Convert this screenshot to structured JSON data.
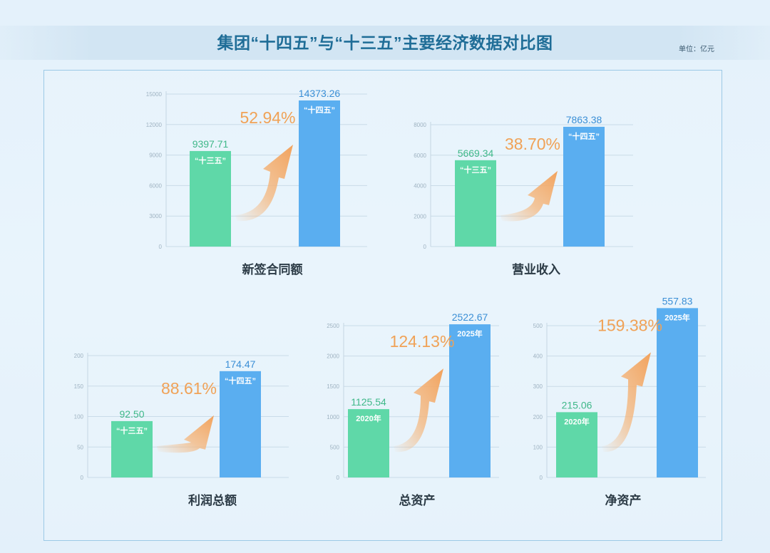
{
  "header": {
    "title": "集团“十四五”与“十三五”主要经济数据对比图",
    "unit": "单位：亿元"
  },
  "colors": {
    "old_bar": "#5fd8a8",
    "new_bar": "#5aaef0",
    "growth": "#f0a257",
    "old_value_text": "#3fb889",
    "new_value_text": "#3b8fd6"
  },
  "chart_data": [
    {
      "type": "bar",
      "title": "新签合同额",
      "categories": [
        "“十三五”",
        "“十四五”"
      ],
      "values": [
        9397.71,
        14373.26
      ],
      "value_labels": [
        "9397.71",
        "14373.26"
      ],
      "growth": "52.94%",
      "yticks": [
        0,
        3000,
        6000,
        9000,
        12000,
        15000
      ],
      "ylim": [
        0,
        15000
      ]
    },
    {
      "type": "bar",
      "title": "营业收入",
      "categories": [
        "“十三五”",
        "“十四五”"
      ],
      "values": [
        5669.34,
        7863.38
      ],
      "value_labels": [
        "5669.34",
        "7863.38"
      ],
      "growth": "38.70%",
      "yticks": [
        0,
        2000,
        4000,
        6000,
        8000
      ],
      "ylim": [
        0,
        10000
      ]
    },
    {
      "type": "bar",
      "title": "利润总额",
      "categories": [
        "“十三五”",
        "“十四五”"
      ],
      "values": [
        92.5,
        174.47
      ],
      "value_labels": [
        "92.50",
        "174.47"
      ],
      "growth": "88.61%",
      "yticks": [
        0,
        50,
        100,
        150,
        200
      ],
      "ylim": [
        0,
        250
      ]
    },
    {
      "type": "bar",
      "title": "总资产",
      "categories": [
        "2020年",
        "2025年"
      ],
      "values": [
        1125.54,
        2522.67
      ],
      "value_labels": [
        "1125.54",
        "2522.67"
      ],
      "growth": "124.13%",
      "yticks": [
        0,
        500,
        1000,
        1500,
        2000,
        2500
      ],
      "ylim": [
        0,
        2500
      ]
    },
    {
      "type": "bar",
      "title": "净资产",
      "categories": [
        "2020年",
        "2025年"
      ],
      "values": [
        215.06,
        557.83
      ],
      "value_labels": [
        "215.06",
        "557.83"
      ],
      "growth": "159.38%",
      "yticks": [
        0,
        100,
        200,
        300,
        400,
        500
      ],
      "ylim": [
        0,
        500
      ]
    }
  ]
}
